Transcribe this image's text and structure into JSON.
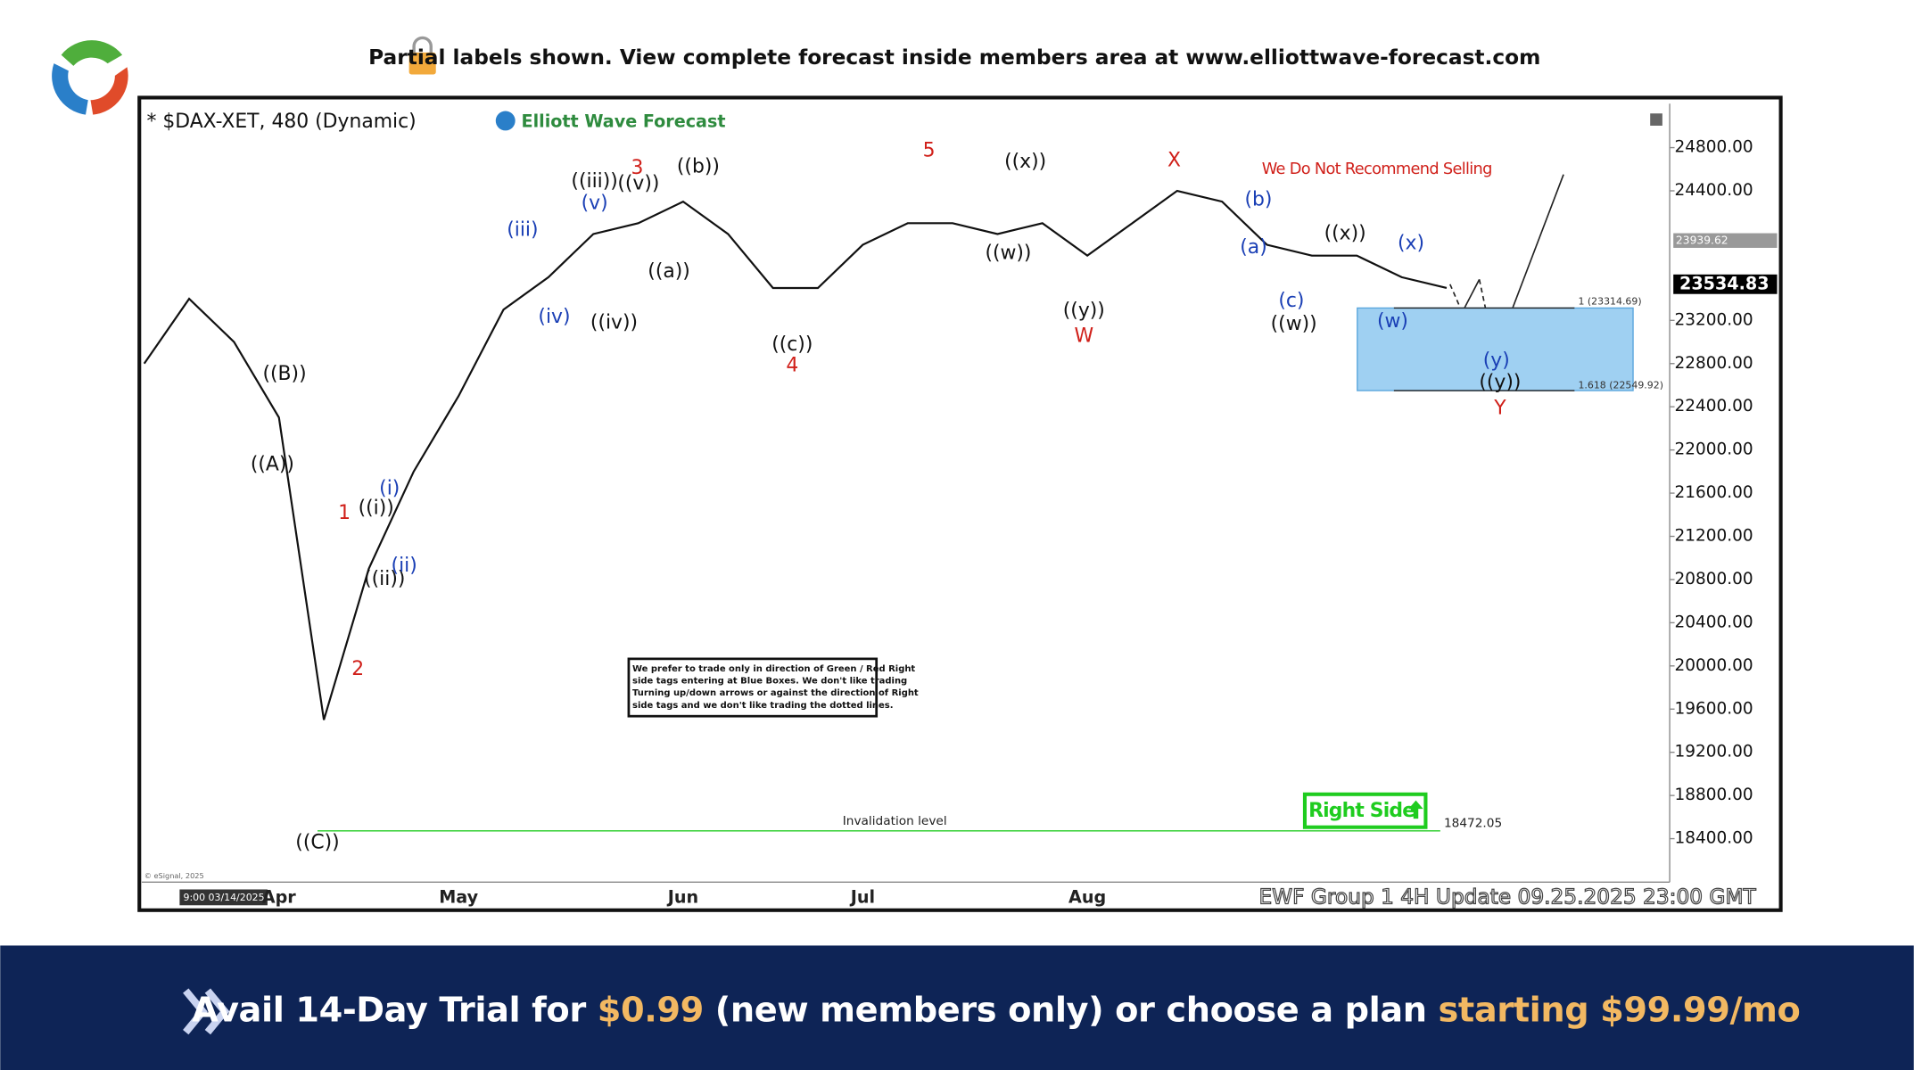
{
  "header": {
    "notice": "Partial labels shown. View complete forecast inside members area at www.elliottwave-forecast.com"
  },
  "chart_data": {
    "type": "line",
    "title": "* $DAX-XET, 480 (Dynamic)",
    "brand": "Elliott Wave Forecast",
    "warning": "We Do Not Recommend Selling",
    "categories": [
      null,
      null,
      null,
      "Apr",
      null,
      null,
      null,
      "May",
      null,
      null,
      null,
      null,
      "Jun",
      null,
      null,
      null,
      "Jul",
      null,
      null,
      null,
      null,
      "Aug",
      null,
      null,
      null,
      null,
      null,
      null,
      null,
      null
    ],
    "values": [
      22800,
      23400,
      23000,
      22300,
      19500,
      20900,
      21800,
      22500,
      23300,
      23600,
      24000,
      24100,
      24300,
      24000,
      23500,
      23500,
      23900,
      24100,
      24100,
      24000,
      24100,
      23800,
      24100,
      24400,
      24300,
      23900,
      23800,
      23800,
      23600,
      23500
    ],
    "color": "#111111",
    "ylim": [
      18000,
      25200
    ],
    "yticks": [
      {
        "value": 18400,
        "label": "18400.00"
      },
      {
        "value": 18800,
        "label": "18800.00"
      },
      {
        "value": 19200,
        "label": "19200.00"
      },
      {
        "value": 19600,
        "label": "19600.00"
      },
      {
        "value": 20000,
        "label": "20000.00"
      },
      {
        "value": 20400,
        "label": "20400.00"
      },
      {
        "value": 20800,
        "label": "20800.00"
      },
      {
        "value": 21200,
        "label": "21200.00"
      },
      {
        "value": 21600,
        "label": "21600.00"
      },
      {
        "value": 22000,
        "label": "22000.00"
      },
      {
        "value": 22400,
        "label": "22400.00"
      },
      {
        "value": 22800,
        "label": "22800.00"
      },
      {
        "value": 23200,
        "label": "23200.00"
      },
      {
        "value": 24400,
        "label": "24400.00"
      },
      {
        "value": 24800,
        "label": "24800.00"
      }
    ],
    "last_price": 23534.83,
    "prior_price": 23939.62,
    "fib_box": {
      "top": 23314.69,
      "top_label": "1 (23314.69)",
      "bottom": 22549.92,
      "bottom_label": "1.618 (22549.92)",
      "color": "#9fd0f2"
    },
    "invalidation": {
      "label": "Invalidation level",
      "value": 18472.05,
      "color": "#22cc22"
    },
    "right_side": "Right Side",
    "note": [
      "We prefer to trade only in direction of Green / Red Right",
      "side tags entering at Blue Boxes. We don't like trading",
      "Turning up/down arrows or against the direction of Right",
      "side tags and we don't like trading the dotted lines."
    ],
    "source": "© eSignal, 2025",
    "start_time": "9:00 03/14/2025",
    "update": "EWF Group 1 4H  Update 09.25.2025 23:00 GMT",
    "wave_labels": [
      {
        "text": "((B))",
        "color": "#111"
      },
      {
        "text": "((A))",
        "color": "#111"
      },
      {
        "text": "((C))",
        "color": "#111"
      },
      {
        "text": "1",
        "color": "#d0201a"
      },
      {
        "text": "2",
        "color": "#d0201a"
      },
      {
        "text": "((i))",
        "color": "#111"
      },
      {
        "text": "(i)",
        "color": "#1a3fb5"
      },
      {
        "text": "((ii))",
        "color": "#111"
      },
      {
        "text": "(ii)",
        "color": "#1a3fb5"
      },
      {
        "text": "(iii)",
        "color": "#1a3fb5"
      },
      {
        "text": "(iv)",
        "color": "#1a3fb5"
      },
      {
        "text": "((iii))",
        "color": "#111"
      },
      {
        "text": "(v)",
        "color": "#1a3fb5"
      },
      {
        "text": "((iv))",
        "color": "#111"
      },
      {
        "text": "3",
        "color": "#d0201a"
      },
      {
        "text": "((v))",
        "color": "#111"
      },
      {
        "text": "((b))",
        "color": "#111"
      },
      {
        "text": "((a))",
        "color": "#111"
      },
      {
        "text": "((c))",
        "color": "#111"
      },
      {
        "text": "4",
        "color": "#d0201a"
      },
      {
        "text": "5",
        "color": "#d0201a"
      },
      {
        "text": "((x))",
        "color": "#111"
      },
      {
        "text": "((w))",
        "color": "#111"
      },
      {
        "text": "((y))",
        "color": "#111"
      },
      {
        "text": "W",
        "color": "#d0201a"
      },
      {
        "text": "X",
        "color": "#d0201a"
      },
      {
        "text": "(b)",
        "color": "#1a3fb5"
      },
      {
        "text": "(a)",
        "color": "#1a3fb5"
      },
      {
        "text": "(c)",
        "color": "#1a3fb5"
      },
      {
        "text": "((w))",
        "color": "#111"
      },
      {
        "text": "((x))",
        "color": "#111"
      },
      {
        "text": "(x)",
        "color": "#1a3fb5"
      },
      {
        "text": "(w)",
        "color": "#1a3fb5"
      },
      {
        "text": "(y)",
        "color": "#1a3fb5"
      },
      {
        "text": "((y))",
        "color": "#111"
      },
      {
        "text": "Y",
        "color": "#d0201a"
      }
    ]
  },
  "footer": {
    "lead": "Avail 14-Day Trial for",
    "price": "$0.99",
    "middle": "(new members only) or choose a plan",
    "plan": "starting $99.99/mo"
  }
}
